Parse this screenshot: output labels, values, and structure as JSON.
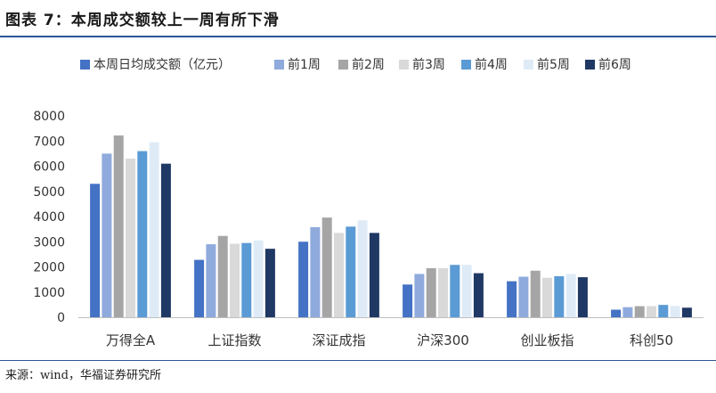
{
  "header": {
    "title": "图表 7：本周成交额较上一周有所下滑"
  },
  "footer": {
    "source": "来源：wind，华福证券研究所"
  },
  "chart_data": {
    "type": "bar",
    "categories": [
      "万得全A",
      "上证指数",
      "深证成指",
      "沪深300",
      "创业板指",
      "科创50"
    ],
    "series": [
      {
        "name": "本周日均成交额（亿元）",
        "color": "#4472c4",
        "values": [
          5300,
          2280,
          3000,
          1300,
          1430,
          300
        ]
      },
      {
        "name": "前1周",
        "color": "#8faadc",
        "values": [
          6500,
          2900,
          3580,
          1720,
          1610,
          400
        ]
      },
      {
        "name": "前2周",
        "color": "#a5a5a5",
        "values": [
          7220,
          3230,
          3960,
          1950,
          1850,
          440
        ]
      },
      {
        "name": "前3周",
        "color": "#d9d9d9",
        "values": [
          6300,
          2920,
          3350,
          1950,
          1570,
          440
        ]
      },
      {
        "name": "前4周",
        "color": "#5b9bd5",
        "values": [
          6600,
          2950,
          3600,
          2080,
          1630,
          490
        ]
      },
      {
        "name": "前5周",
        "color": "#deebf7",
        "values": [
          6950,
          3050,
          3850,
          2080,
          1720,
          450
        ]
      },
      {
        "name": "前6周",
        "color": "#203864",
        "values": [
          6100,
          2720,
          3350,
          1750,
          1590,
          380
        ]
      }
    ],
    "ylim": [
      0,
      8000
    ],
    "yticks": [
      "0",
      "1000",
      "2000",
      "3000",
      "4000",
      "5000",
      "6000",
      "7000",
      "8000"
    ],
    "grid": false,
    "legend_position": "top"
  }
}
